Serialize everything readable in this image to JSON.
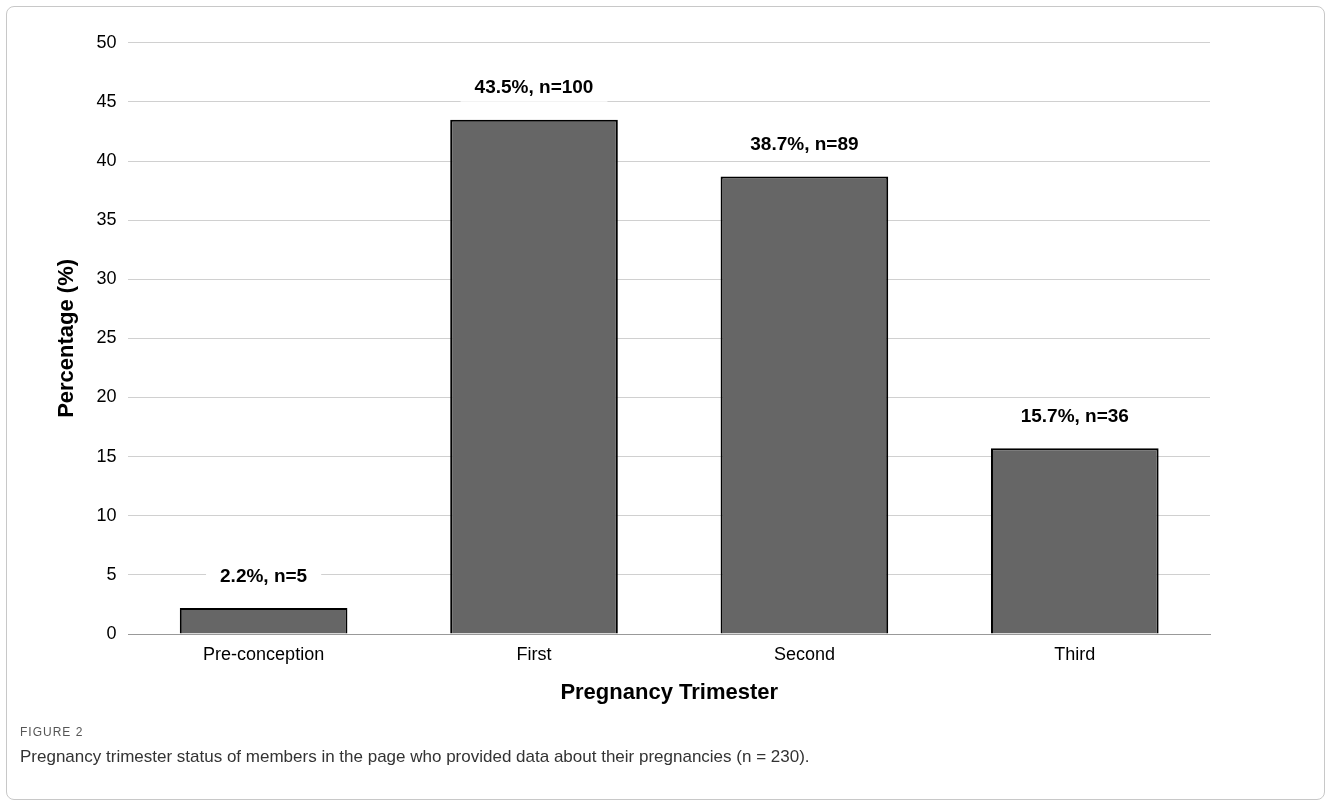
{
  "chart_data": {
    "type": "bar",
    "xlabel": "Pregnancy Trimester",
    "ylabel": "Percentage (%)",
    "categories": [
      "Pre-conception",
      "First",
      "Second",
      "Third"
    ],
    "values": [
      2.2,
      43.5,
      38.7,
      15.7
    ],
    "color": "#666666",
    "value_labels": [
      "2.2%, n=5",
      "43.5%, n=100",
      "38.7%, n=89",
      "15.7%, n=36"
    ],
    "ylim": [
      0,
      50
    ],
    "yticks": [
      0,
      5,
      10,
      15,
      20,
      25,
      30,
      35,
      40,
      45,
      50
    ],
    "grid": "y",
    "legend": false,
    "annotations": [
      "FIGURE 2",
      "Pregnancy trimester status of members in the page who provided data about their pregnancies (n = 230)."
    ]
  }
}
